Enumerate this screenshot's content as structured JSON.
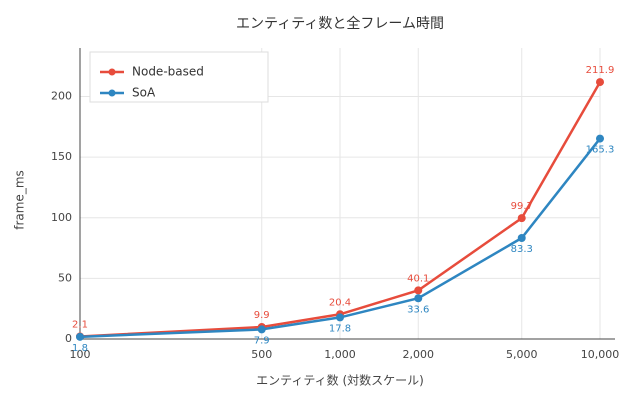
{
  "chart_data": {
    "type": "line",
    "title": "エンティティ数と全フレーム時間",
    "x_label": "エンティティ数 (対数スケール)",
    "y_label": "frame_ms",
    "x": [
      100,
      500,
      1000,
      2000,
      5000,
      10000
    ],
    "x_scale": "log",
    "xlim": [
      100,
      10000
    ],
    "xticks": [
      100,
      500,
      {
        "value": 1000,
        "label": "1,000"
      },
      {
        "value": 2000,
        "label": "2,000"
      },
      {
        "value": 5000,
        "label": "5,000"
      },
      {
        "value": 10000,
        "label": "10,000"
      }
    ],
    "ylim": [
      0,
      240
    ],
    "yticks": [
      0,
      50,
      100,
      150,
      200
    ],
    "grid": true,
    "legend": "top-left",
    "series": [
      {
        "name": "Node-based",
        "color": "#e74c3c",
        "values": [
          2.1,
          9.9,
          20.4,
          40.1,
          99.7,
          211.9
        ]
      },
      {
        "name": "SoA",
        "color": "#2e86c1",
        "values": [
          1.8,
          7.9,
          17.8,
          33.6,
          83.3,
          165.3
        ]
      }
    ]
  }
}
